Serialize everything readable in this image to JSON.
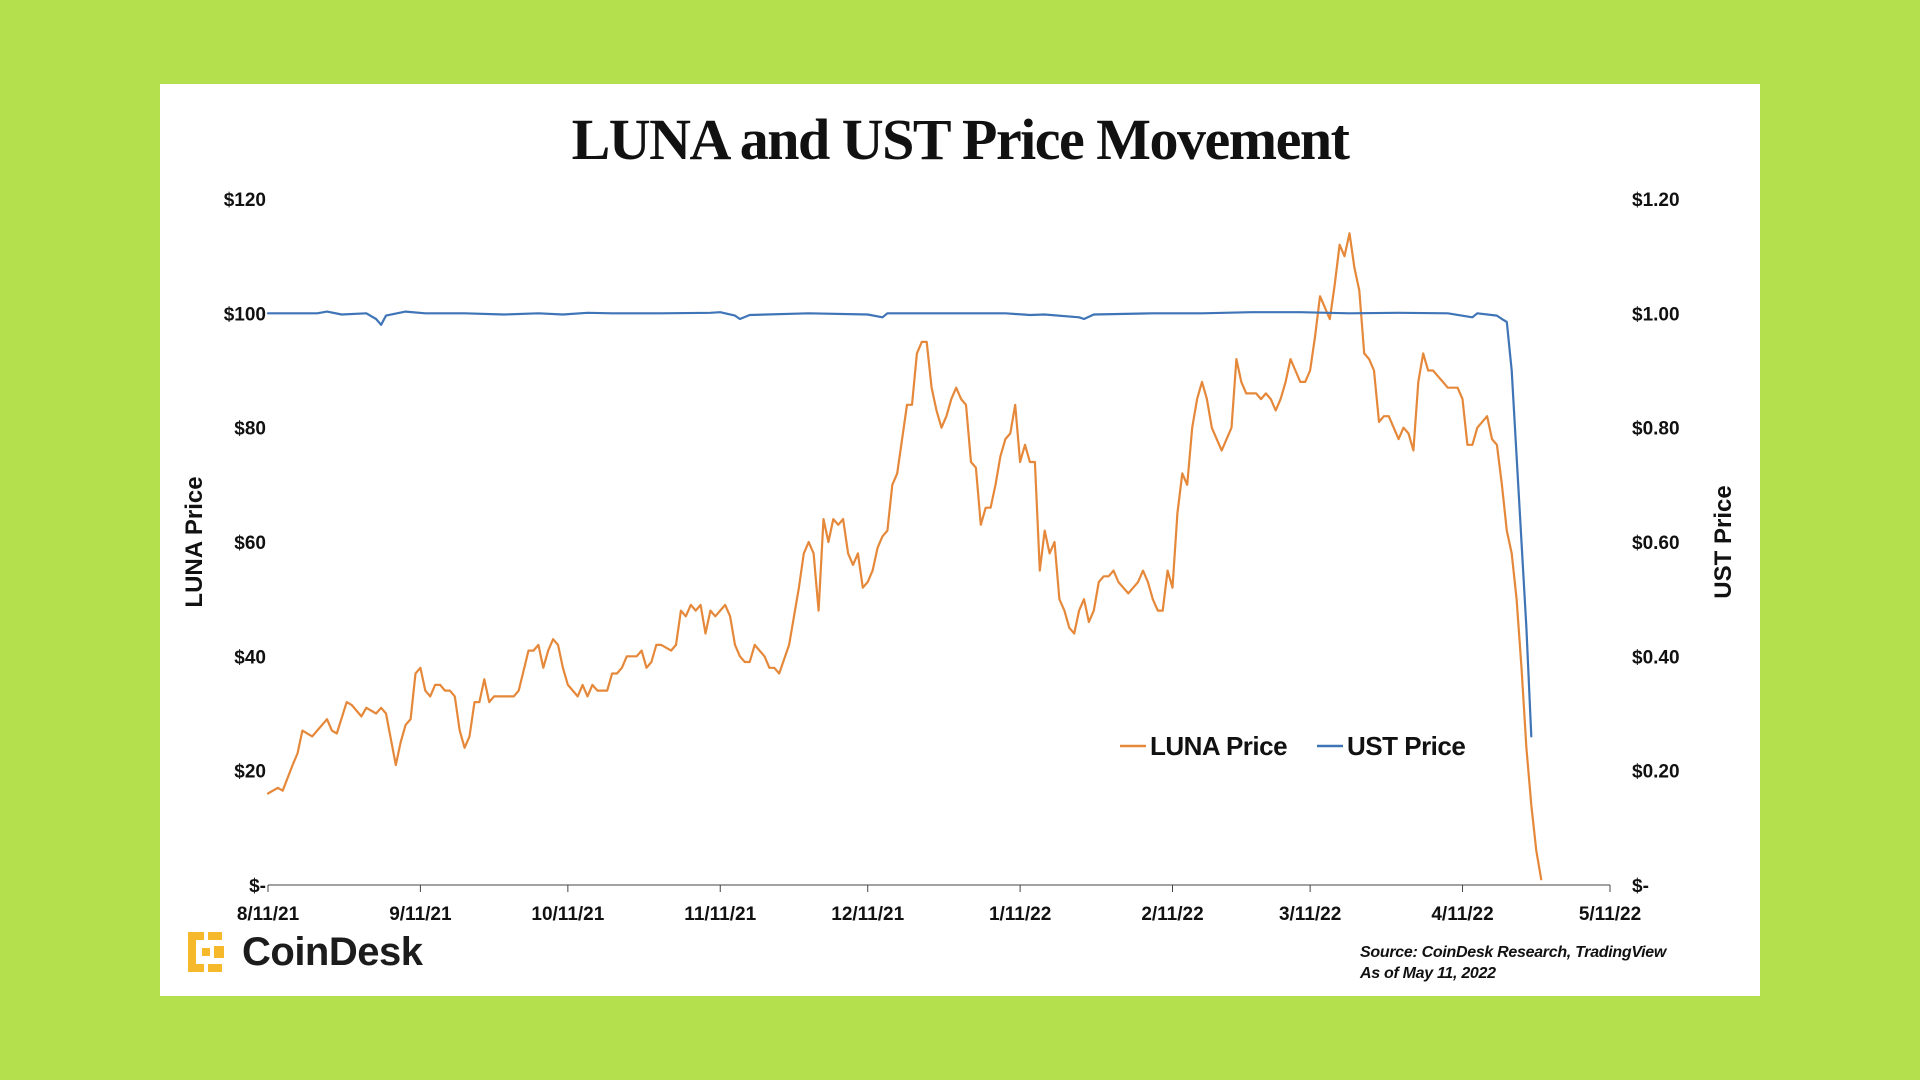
{
  "title": "LUNA and UST Price Movement",
  "colors": {
    "background": "#b5e04d",
    "card": "#ffffff",
    "luna": "#e5883a",
    "ust": "#3f74b6",
    "axis": "#444444"
  },
  "brand": {
    "name": "CoinDesk",
    "icon": "coindesk-logo-icon",
    "icon_color": "#f5b92b"
  },
  "source": {
    "line1": "Source: CoinDesk Research, TradingView",
    "line2": "As of May 11, 2022"
  },
  "chart_data": {
    "type": "line",
    "title": "LUNA and UST Price Movement",
    "x_start": "8/11/21",
    "x_end": "5/11/22",
    "x_unit": "days since 8/11/21",
    "x_range": [
      0,
      273
    ],
    "x_ticks": [
      {
        "label": "8/11/21",
        "day": 0
      },
      {
        "label": "9/11/21",
        "day": 31
      },
      {
        "label": "10/11/21",
        "day": 61
      },
      {
        "label": "11/11/21",
        "day": 92
      },
      {
        "label": "12/11/21",
        "day": 122
      },
      {
        "label": "1/11/22",
        "day": 153
      },
      {
        "label": "2/11/22",
        "day": 184
      },
      {
        "label": "3/11/22",
        "day": 212
      },
      {
        "label": "4/11/22",
        "day": 243
      },
      {
        "label": "5/11/22",
        "day": 273
      }
    ],
    "y_left": {
      "label": "LUNA Price",
      "range": [
        0,
        120
      ],
      "ticks": [
        "$-",
        "$20",
        "$40",
        "$60",
        "$80",
        "$100",
        "$120"
      ]
    },
    "y_right": {
      "label": "UST Price",
      "range": [
        0,
        1.2
      ],
      "ticks": [
        "$-",
        "$0.20",
        "$0.40",
        "$0.60",
        "$0.80",
        "$1.00",
        "$1.20"
      ]
    },
    "legend_position": "center-right",
    "series": [
      {
        "name": "LUNA Price",
        "axis": "left",
        "points": [
          [
            0,
            16
          ],
          [
            2,
            17
          ],
          [
            3,
            16.5
          ],
          [
            5,
            21
          ],
          [
            6,
            23
          ],
          [
            7,
            27
          ],
          [
            9,
            26
          ],
          [
            10,
            27
          ],
          [
            12,
            29
          ],
          [
            13,
            27
          ],
          [
            14,
            26.5
          ],
          [
            16,
            32
          ],
          [
            17,
            31.5
          ],
          [
            19,
            29.5
          ],
          [
            20,
            31
          ],
          [
            22,
            30
          ],
          [
            23,
            31
          ],
          [
            24,
            30
          ],
          [
            26,
            21
          ],
          [
            27,
            25
          ],
          [
            28,
            28
          ],
          [
            29,
            29
          ],
          [
            30,
            37
          ],
          [
            31,
            38
          ],
          [
            32,
            34
          ],
          [
            33,
            33
          ],
          [
            34,
            35
          ],
          [
            35,
            35
          ],
          [
            36,
            34
          ],
          [
            37,
            34
          ],
          [
            38,
            33
          ],
          [
            39,
            27
          ],
          [
            40,
            24
          ],
          [
            41,
            26
          ],
          [
            42,
            32
          ],
          [
            43,
            32
          ],
          [
            44,
            36
          ],
          [
            45,
            32
          ],
          [
            46,
            33
          ],
          [
            48,
            33
          ],
          [
            50,
            33
          ],
          [
            51,
            34
          ],
          [
            53,
            41
          ],
          [
            54,
            41
          ],
          [
            55,
            42
          ],
          [
            56,
            38
          ],
          [
            57,
            41
          ],
          [
            58,
            43
          ],
          [
            59,
            42
          ],
          [
            60,
            38
          ],
          [
            61,
            35
          ],
          [
            62,
            34
          ],
          [
            63,
            33
          ],
          [
            64,
            35
          ],
          [
            65,
            33
          ],
          [
            66,
            35
          ],
          [
            67,
            34
          ],
          [
            69,
            34
          ],
          [
            70,
            37
          ],
          [
            71,
            37
          ],
          [
            72,
            38
          ],
          [
            73,
            40
          ],
          [
            75,
            40
          ],
          [
            76,
            41
          ],
          [
            77,
            38
          ],
          [
            78,
            39
          ],
          [
            79,
            42
          ],
          [
            80,
            42
          ],
          [
            82,
            41
          ],
          [
            83,
            42
          ],
          [
            84,
            48
          ],
          [
            85,
            47
          ],
          [
            86,
            49
          ],
          [
            87,
            48
          ],
          [
            88,
            49
          ],
          [
            89,
            44
          ],
          [
            90,
            48
          ],
          [
            91,
            47
          ],
          [
            92,
            48
          ],
          [
            93,
            49
          ],
          [
            94,
            47
          ],
          [
            95,
            42
          ],
          [
            96,
            40
          ],
          [
            97,
            39
          ],
          [
            98,
            39
          ],
          [
            99,
            42
          ],
          [
            100,
            41
          ],
          [
            101,
            40
          ],
          [
            102,
            38
          ],
          [
            103,
            38
          ],
          [
            104,
            37
          ],
          [
            106,
            42
          ],
          [
            107,
            47
          ],
          [
            108,
            52
          ],
          [
            109,
            58
          ],
          [
            110,
            60
          ],
          [
            111,
            58
          ],
          [
            112,
            48
          ],
          [
            113,
            64
          ],
          [
            114,
            60
          ],
          [
            115,
            64
          ],
          [
            116,
            63
          ],
          [
            117,
            64
          ],
          [
            118,
            58
          ],
          [
            119,
            56
          ],
          [
            120,
            58
          ],
          [
            121,
            52
          ],
          [
            122,
            53
          ],
          [
            123,
            55
          ],
          [
            124,
            59
          ],
          [
            125,
            61
          ],
          [
            126,
            62
          ],
          [
            127,
            70
          ],
          [
            128,
            72
          ],
          [
            129,
            78
          ],
          [
            130,
            84
          ],
          [
            131,
            84
          ],
          [
            132,
            93
          ],
          [
            133,
            95
          ],
          [
            134,
            95
          ],
          [
            135,
            87
          ],
          [
            136,
            83
          ],
          [
            137,
            80
          ],
          [
            138,
            82
          ],
          [
            139,
            85
          ],
          [
            140,
            87
          ],
          [
            141,
            85
          ],
          [
            142,
            84
          ],
          [
            143,
            74
          ],
          [
            144,
            73
          ],
          [
            145,
            63
          ],
          [
            146,
            66
          ],
          [
            147,
            66
          ],
          [
            148,
            70
          ],
          [
            149,
            75
          ],
          [
            150,
            78
          ],
          [
            151,
            79
          ],
          [
            152,
            84
          ],
          [
            153,
            74
          ],
          [
            154,
            77
          ],
          [
            155,
            74
          ],
          [
            156,
            74
          ],
          [
            157,
            55
          ],
          [
            158,
            62
          ],
          [
            159,
            58
          ],
          [
            160,
            60
          ],
          [
            161,
            50
          ],
          [
            162,
            48
          ],
          [
            163,
            45
          ],
          [
            164,
            44
          ],
          [
            165,
            48
          ],
          [
            166,
            50
          ],
          [
            167,
            46
          ],
          [
            168,
            48
          ],
          [
            169,
            53
          ],
          [
            170,
            54
          ],
          [
            171,
            54
          ],
          [
            172,
            55
          ],
          [
            173,
            53
          ],
          [
            174,
            52
          ],
          [
            175,
            51
          ],
          [
            176,
            52
          ],
          [
            177,
            53
          ],
          [
            178,
            55
          ],
          [
            179,
            53
          ],
          [
            180,
            50
          ],
          [
            181,
            48
          ],
          [
            182,
            48
          ],
          [
            183,
            55
          ],
          [
            184,
            52
          ],
          [
            185,
            65
          ],
          [
            186,
            72
          ],
          [
            187,
            70
          ],
          [
            188,
            80
          ],
          [
            189,
            85
          ],
          [
            190,
            88
          ],
          [
            191,
            85
          ],
          [
            192,
            80
          ],
          [
            193,
            78
          ],
          [
            194,
            76
          ],
          [
            195,
            78
          ],
          [
            196,
            80
          ],
          [
            197,
            92
          ],
          [
            198,
            88
          ],
          [
            199,
            86
          ],
          [
            200,
            86
          ],
          [
            201,
            86
          ],
          [
            202,
            85
          ],
          [
            203,
            86
          ],
          [
            204,
            85
          ],
          [
            205,
            83
          ],
          [
            206,
            85
          ],
          [
            207,
            88
          ],
          [
            208,
            92
          ],
          [
            209,
            90
          ],
          [
            210,
            88
          ],
          [
            211,
            88
          ],
          [
            212,
            90
          ],
          [
            213,
            96
          ],
          [
            214,
            103
          ],
          [
            215,
            101
          ],
          [
            216,
            99
          ],
          [
            217,
            105
          ],
          [
            218,
            112
          ],
          [
            219,
            110
          ],
          [
            220,
            114
          ],
          [
            221,
            108
          ],
          [
            222,
            104
          ],
          [
            223,
            93
          ],
          [
            224,
            92
          ],
          [
            225,
            90
          ],
          [
            226,
            81
          ],
          [
            227,
            82
          ],
          [
            228,
            82
          ],
          [
            229,
            80
          ],
          [
            230,
            78
          ],
          [
            231,
            80
          ],
          [
            232,
            79
          ],
          [
            233,
            76
          ],
          [
            234,
            88
          ],
          [
            235,
            93
          ],
          [
            236,
            90
          ],
          [
            237,
            90
          ],
          [
            238,
            89
          ],
          [
            239,
            88
          ],
          [
            240,
            87
          ],
          [
            241,
            87
          ],
          [
            242,
            87
          ],
          [
            243,
            85
          ],
          [
            244,
            77
          ],
          [
            245,
            77
          ],
          [
            246,
            80
          ],
          [
            247,
            81
          ],
          [
            248,
            82
          ],
          [
            249,
            78
          ],
          [
            250,
            77
          ],
          [
            251,
            70
          ],
          [
            252,
            62
          ],
          [
            253,
            58
          ],
          [
            254,
            50
          ],
          [
            255,
            38
          ],
          [
            256,
            24
          ],
          [
            257,
            14
          ],
          [
            258,
            6
          ],
          [
            259,
            1
          ]
        ]
      },
      {
        "name": "UST Price",
        "axis": "right",
        "points": [
          [
            0,
            1.0
          ],
          [
            5,
            1.0
          ],
          [
            10,
            1.0
          ],
          [
            12,
            1.003
          ],
          [
            15,
            0.998
          ],
          [
            20,
            1.0
          ],
          [
            22,
            0.99
          ],
          [
            23,
            0.98
          ],
          [
            24,
            0.996
          ],
          [
            28,
            1.003
          ],
          [
            32,
            1.0
          ],
          [
            40,
            1.0
          ],
          [
            48,
            0.998
          ],
          [
            55,
            1.0
          ],
          [
            60,
            0.998
          ],
          [
            65,
            1.001
          ],
          [
            70,
            1.0
          ],
          [
            80,
            1.0
          ],
          [
            90,
            1.001
          ],
          [
            92,
            1.002
          ],
          [
            95,
            0.996
          ],
          [
            96,
            0.99
          ],
          [
            98,
            0.997
          ],
          [
            110,
            1.0
          ],
          [
            122,
            0.998
          ],
          [
            125,
            0.993
          ],
          [
            126,
            1.0
          ],
          [
            138,
            1.0
          ],
          [
            150,
            1.0
          ],
          [
            155,
            0.997
          ],
          [
            158,
            0.998
          ],
          [
            165,
            0.993
          ],
          [
            166,
            0.99
          ],
          [
            168,
            0.998
          ],
          [
            180,
            1.0
          ],
          [
            190,
            1.0
          ],
          [
            200,
            1.002
          ],
          [
            210,
            1.002
          ],
          [
            220,
            1.0
          ],
          [
            230,
            1.001
          ],
          [
            240,
            1.0
          ],
          [
            245,
            0.993
          ],
          [
            246,
            1.0
          ],
          [
            250,
            0.996
          ],
          [
            251,
            0.99
          ],
          [
            252,
            0.985
          ],
          [
            253,
            0.9
          ],
          [
            254,
            0.75
          ],
          [
            255,
            0.6
          ],
          [
            256,
            0.45
          ],
          [
            257,
            0.26
          ]
        ]
      }
    ]
  }
}
